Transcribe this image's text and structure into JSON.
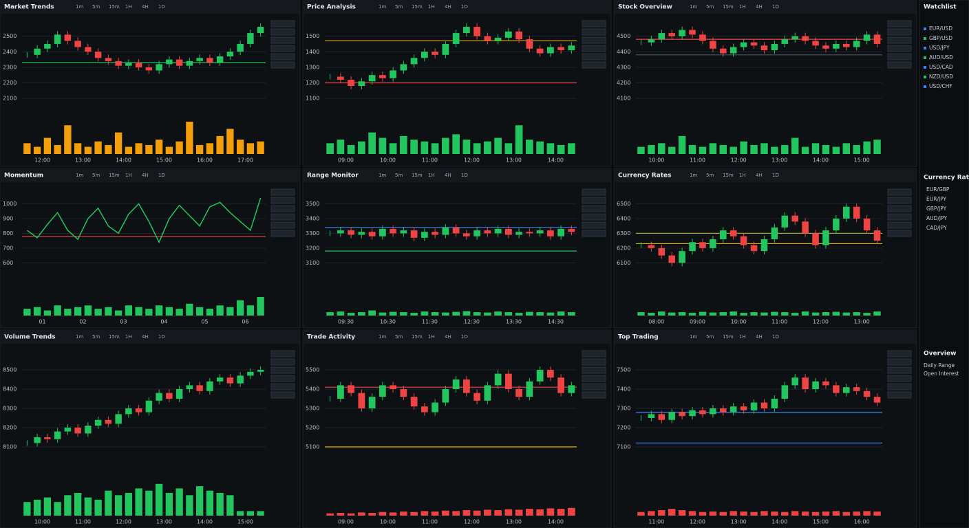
{
  "tabs": [
    "1m",
    "5m",
    "15m",
    "1H",
    "4H",
    "1D"
  ],
  "sidebar": {
    "title": "Watchlist",
    "items": [
      "EUR/USD",
      "GBP/USD",
      "USD/JPY",
      "AUD/USD",
      "USD/CAD",
      "NZD/USD",
      "USD/CHF"
    ],
    "section": "Currency Rates",
    "rates": [
      "EUR/GBP",
      "EUR/JPY",
      "GBP/JPY",
      "AUD/JPY",
      "CAD/JPY"
    ],
    "footer": "Overview",
    "footer_items": [
      "Daily Range",
      "Open Interest"
    ]
  },
  "panels": [
    {
      "title": "Market Trends",
      "type": "candle",
      "ylim": [
        2000,
        2600
      ],
      "yticks": [
        2100,
        2200,
        2300,
        2400,
        2500
      ],
      "xticks": [
        "12:00",
        "13:00",
        "14:00",
        "15:00",
        "16:00",
        "17:00"
      ],
      "closes": [
        2380,
        2420,
        2450,
        2510,
        2470,
        2430,
        2400,
        2360,
        2340,
        2310,
        2330,
        2300,
        2280,
        2320,
        2350,
        2310,
        2340,
        2360,
        2330,
        2370,
        2400,
        2450,
        2520,
        2560
      ],
      "volumes": [
        30,
        20,
        45,
        25,
        80,
        30,
        20,
        35,
        25,
        60,
        20,
        30,
        25,
        40,
        20,
        35,
        90,
        25,
        30,
        50,
        70,
        40,
        30,
        35
      ],
      "vlim": [
        0,
        100
      ],
      "vol_color": "#f59e0b",
      "levels": [
        {
          "value": 2330,
          "color": "#22c55e"
        }
      ]
    },
    {
      "title": "Price Analysis",
      "type": "candle",
      "ylim": [
        1000,
        1600
      ],
      "yticks": [
        1100,
        1200,
        1300,
        1400,
        1500
      ],
      "xticks": [
        "09:00",
        "10:00",
        "11:00",
        "12:00",
        "13:00",
        "14:00"
      ],
      "closes": [
        1240,
        1220,
        1180,
        1210,
        1250,
        1230,
        1280,
        1320,
        1360,
        1400,
        1380,
        1450,
        1520,
        1560,
        1500,
        1470,
        1490,
        1530,
        1480,
        1420,
        1390,
        1430,
        1410,
        1440
      ],
      "volumes": [
        30,
        40,
        25,
        35,
        60,
        45,
        30,
        50,
        40,
        35,
        30,
        45,
        55,
        40,
        30,
        35,
        45,
        30,
        80,
        40,
        35,
        30,
        25,
        30
      ],
      "vlim": [
        0,
        100
      ],
      "vol_color": "#22c55e",
      "levels": [
        {
          "value": 1470,
          "color": "#eab308"
        },
        {
          "value": 1200,
          "color": "#ef4444"
        }
      ]
    },
    {
      "title": "Stock Overview",
      "type": "candle",
      "ylim": [
        4000,
        4600
      ],
      "yticks": [
        4100,
        4200,
        4300,
        4400,
        4500
      ],
      "xticks": [
        "10:00",
        "11:00",
        "12:00",
        "13:00",
        "14:00",
        "15:00"
      ],
      "closes": [
        4460,
        4480,
        4520,
        4500,
        4540,
        4510,
        4470,
        4420,
        4390,
        4430,
        4460,
        4440,
        4410,
        4450,
        4480,
        4500,
        4470,
        4440,
        4420,
        4450,
        4430,
        4470,
        4510,
        4450
      ],
      "volumes": [
        20,
        25,
        30,
        20,
        50,
        25,
        20,
        30,
        25,
        20,
        35,
        25,
        30,
        20,
        25,
        45,
        20,
        30,
        25,
        20,
        30,
        25,
        35,
        40
      ],
      "vlim": [
        0,
        100
      ],
      "vol_color": "#22c55e",
      "levels": [
        {
          "value": 4480,
          "color": "#ef4444"
        },
        {
          "value": 4380,
          "color": "#4b5563"
        }
      ]
    },
    {
      "title": "Momentum",
      "type": "line",
      "ylim": [
        500,
        1100
      ],
      "yticks": [
        600,
        700,
        800,
        900,
        1000
      ],
      "xticks": [
        "01",
        "02",
        "03",
        "04",
        "05",
        "06"
      ],
      "closes": [
        820,
        770,
        860,
        940,
        820,
        760,
        900,
        970,
        850,
        800,
        930,
        1000,
        880,
        740,
        900,
        990,
        920,
        850,
        980,
        1010,
        940,
        880,
        820,
        1040
      ],
      "volumes": [
        20,
        25,
        15,
        30,
        20,
        25,
        30,
        20,
        25,
        15,
        30,
        25,
        20,
        30,
        25,
        20,
        35,
        25,
        20,
        30,
        25,
        45,
        30,
        55
      ],
      "vlim": [
        0,
        100
      ],
      "vol_color": "#22c55e",
      "levels": [
        {
          "value": 780,
          "color": "#ef4444"
        }
      ]
    },
    {
      "title": "Range Monitor",
      "type": "candle",
      "ylim": [
        3000,
        3600
      ],
      "yticks": [
        3100,
        3200,
        3300,
        3400,
        3500
      ],
      "xticks": [
        "09:30",
        "10:30",
        "11:30",
        "12:30",
        "13:30",
        "14:30"
      ],
      "closes": [
        3300,
        3320,
        3290,
        3310,
        3280,
        3330,
        3300,
        3320,
        3270,
        3310,
        3290,
        3340,
        3300,
        3280,
        3320,
        3300,
        3330,
        3290,
        3310,
        3300,
        3320,
        3280,
        3330,
        3310
      ],
      "volumes": [
        10,
        12,
        8,
        10,
        15,
        9,
        11,
        10,
        8,
        12,
        10,
        9,
        11,
        13,
        10,
        9,
        12,
        10,
        8,
        11,
        10,
        9,
        12,
        10
      ],
      "vlim": [
        0,
        100
      ],
      "vol_color": "#22c55e",
      "levels": [
        {
          "value": 3340,
          "color": "#3b82f6"
        },
        {
          "value": 3180,
          "color": "#22c55e"
        }
      ]
    },
    {
      "title": "Currency Rates",
      "type": "candle",
      "ylim": [
        6000,
        6600
      ],
      "yticks": [
        6100,
        6200,
        6300,
        6400,
        6500
      ],
      "xticks": [
        "08:00",
        "09:00",
        "10:00",
        "11:00",
        "12:00",
        "13:00"
      ],
      "closes": [
        6220,
        6200,
        6150,
        6100,
        6180,
        6240,
        6200,
        6260,
        6320,
        6280,
        6220,
        6180,
        6260,
        6340,
        6420,
        6380,
        6300,
        6220,
        6320,
        6400,
        6480,
        6400,
        6320,
        6250
      ],
      "volumes": [
        10,
        8,
        12,
        9,
        10,
        8,
        11,
        9,
        10,
        12,
        8,
        10,
        9,
        11,
        10,
        8,
        12,
        9,
        10,
        11,
        9,
        10,
        8,
        12
      ],
      "vlim": [
        0,
        100
      ],
      "vol_color": "#22c55e",
      "levels": [
        {
          "value": 6300,
          "color": "#a3a33a"
        },
        {
          "value": 6230,
          "color": "#eab308"
        }
      ]
    },
    {
      "title": "Volume Trends",
      "type": "candle",
      "ylim": [
        8000,
        8600
      ],
      "yticks": [
        8100,
        8200,
        8300,
        8400,
        8500
      ],
      "xticks": [
        "10:00",
        "11:00",
        "12:00",
        "13:00",
        "14:00",
        "15:00"
      ],
      "closes": [
        8120,
        8150,
        8140,
        8180,
        8200,
        8170,
        8210,
        8240,
        8220,
        8270,
        8300,
        8280,
        8340,
        8380,
        8350,
        8400,
        8420,
        8390,
        8440,
        8460,
        8430,
        8470,
        8490,
        8500
      ],
      "volumes": [
        30,
        35,
        40,
        30,
        45,
        50,
        40,
        35,
        55,
        45,
        50,
        60,
        55,
        70,
        50,
        60,
        45,
        65,
        55,
        50,
        45,
        10,
        10,
        10
      ],
      "vlim": [
        0,
        100
      ],
      "vol_color": "#22c55e",
      "levels": []
    },
    {
      "title": "Trade Activity",
      "type": "candle",
      "ylim": [
        5000,
        5600
      ],
      "yticks": [
        5100,
        5200,
        5300,
        5400,
        5500
      ],
      "xticks": [
        "09:00",
        "10:00",
        "11:00",
        "12:00",
        "13:00",
        "14:00"
      ],
      "closes": [
        5350,
        5420,
        5380,
        5300,
        5360,
        5420,
        5400,
        5360,
        5310,
        5280,
        5330,
        5400,
        5450,
        5380,
        5340,
        5420,
        5480,
        5400,
        5360,
        5440,
        5500,
        5460,
        5380,
        5420
      ],
      "volumes": [
        5,
        6,
        5,
        7,
        6,
        8,
        7,
        9,
        8,
        10,
        9,
        11,
        10,
        12,
        11,
        13,
        12,
        14,
        13,
        15,
        14,
        16,
        15,
        17
      ],
      "vlim": [
        0,
        100
      ],
      "vol_color": "#ef4444",
      "levels": [
        {
          "value": 5410,
          "color": "#ef4444"
        },
        {
          "value": 5100,
          "color": "#eab308"
        }
      ]
    },
    {
      "title": "Top Trading",
      "type": "candle",
      "ylim": [
        7000,
        7600
      ],
      "yticks": [
        7100,
        7200,
        7300,
        7400,
        7500
      ],
      "xticks": [
        "11:00",
        "12:00",
        "13:00",
        "14:00",
        "15:00",
        "16:00"
      ],
      "closes": [
        7250,
        7270,
        7240,
        7280,
        7260,
        7290,
        7270,
        7300,
        7280,
        7310,
        7290,
        7330,
        7300,
        7350,
        7420,
        7460,
        7400,
        7440,
        7420,
        7380,
        7410,
        7390,
        7360,
        7330
      ],
      "volumes": [
        8,
        10,
        12,
        15,
        12,
        10,
        8,
        9,
        8,
        10,
        9,
        8,
        10,
        9,
        8,
        10,
        9,
        8,
        9,
        10,
        8,
        9,
        10,
        9
      ],
      "vlim": [
        0,
        100
      ],
      "vol_color": "#ef4444",
      "levels": [
        {
          "value": 7280,
          "color": "#3b82f6"
        },
        {
          "value": 7120,
          "color": "#3b82f6"
        }
      ]
    }
  ]
}
